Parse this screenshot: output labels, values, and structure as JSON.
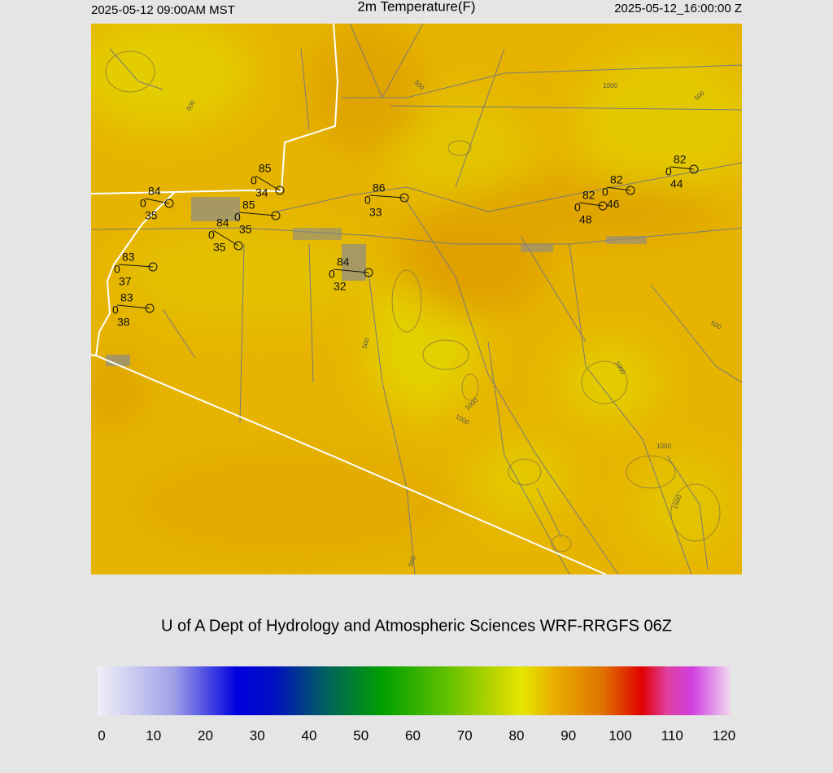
{
  "header": {
    "left": "2025-05-12 09:00AM MST",
    "title": "2m Temperature(F)",
    "right": "2025-05-12_16:00:00 Z"
  },
  "stations": [
    {
      "temp": 84,
      "wind": 0,
      "dewpoint": 35
    },
    {
      "temp": 85,
      "wind": 0,
      "dewpoint": 34
    },
    {
      "temp": 85,
      "wind": 0,
      "dewpoint": 35
    },
    {
      "temp": 84,
      "wind": 0,
      "dewpoint": 35
    },
    {
      "temp": 86,
      "wind": 0,
      "dewpoint": 33
    },
    {
      "temp": 84,
      "wind": 0,
      "dewpoint": 32
    },
    {
      "temp": 83,
      "wind": 0,
      "dewpoint": 37
    },
    {
      "temp": 83,
      "wind": 0,
      "dewpoint": 38
    },
    {
      "temp": 82,
      "wind": 0,
      "dewpoint": 44
    },
    {
      "temp": 82,
      "wind": 0,
      "dewpoint": 46
    },
    {
      "temp": 82,
      "wind": 0,
      "dewpoint": 48
    }
  ],
  "contour_labels": [
    500,
    500,
    1000,
    500,
    500,
    1000,
    1000,
    1000,
    500,
    1000,
    1500,
    500
  ],
  "credit": "U of A Dept of Hydrology and Atmospheric Sciences WRF-RRGFS 06Z",
  "colorbar": {
    "range": [
      0,
      120
    ],
    "ticks": [
      0,
      10,
      20,
      30,
      40,
      50,
      60,
      70,
      80,
      90,
      100,
      110,
      120
    ]
  }
}
